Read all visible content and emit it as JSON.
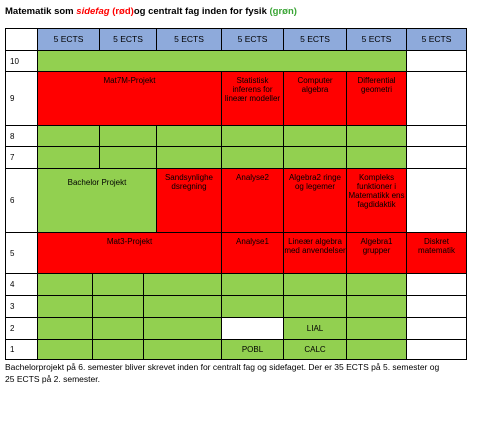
{
  "title": {
    "part1": "Matematik som ",
    "sidefag": "sidefag",
    "rod": "(rød)",
    "part2": "og centralt fag inden for fysik ",
    "gron": "(grøn)"
  },
  "colors": {
    "header": "#8eaadb",
    "green": "#92d050",
    "red": "#ff0000"
  },
  "table": {
    "header": [
      "5 ECTS",
      "5 ECTS",
      "5 ECTS",
      "5 ECTS",
      "5 ECTS",
      "5 ECTS",
      "5 ECTS"
    ],
    "row_labels": [
      "10",
      "9",
      "8",
      "7",
      "6",
      "5",
      "4",
      "3",
      "2",
      "1"
    ],
    "cells": {
      "mat7m": "Mat7M-Projekt",
      "statistisk": "Statistisk inferens for lineær modeller",
      "computer": "Computer algebra",
      "differential": "Differential geometri",
      "bachelor": "Bachelor Projekt",
      "sandsynlighed": "Sandsynlighe dsregning",
      "analyse2": "Analyse2",
      "algebra2": "Algebra2 ringe og legemer",
      "kompleks": "Kompleks funktioner i Matematikk ens fagdidaktik",
      "mat3": "Mat3-Projekt",
      "analyse1": "Analyse1",
      "lineaer": "Lineær algebra med anvendelser",
      "algebra1": "Algebra1 grupper",
      "diskret": "Diskret matematik",
      "lial": "LIAL",
      "pobl": "POBL",
      "calc": "CALC"
    }
  },
  "note": "Bachelorprojekt på 6. semester bliver skrevet inden for centralt fag og sidefaget. Der er 35 ECTS på 5. semester og 25 ECTS på 2. semester."
}
